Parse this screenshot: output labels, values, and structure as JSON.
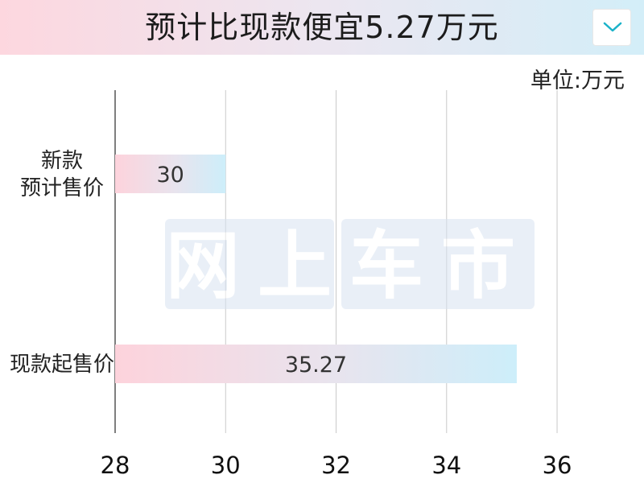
{
  "header": {
    "title": "预计比现款便宜5.27万元",
    "dropdown_icon": "chevron-down-icon"
  },
  "unit_label": "单位:万元",
  "watermark": "网上车市",
  "colors": {
    "bar_start": "#fdd3dc",
    "bar_end": "#cdeefa",
    "chevron": "#1ab2c9"
  },
  "chart_data": {
    "type": "bar",
    "orientation": "horizontal",
    "title": "预计比现款便宜5.27万元",
    "unit": "单位:万元",
    "categories": [
      {
        "label_lines": [
          "新款",
          "预计售价"
        ],
        "value": 30,
        "label": "30"
      },
      {
        "label_lines": [
          "现款起售价"
        ],
        "value": 35.27,
        "label": "35.27"
      }
    ],
    "xlim": [
      28,
      37.5
    ],
    "x_ticks": [
      28,
      30,
      32,
      34,
      36
    ],
    "grid": true
  }
}
